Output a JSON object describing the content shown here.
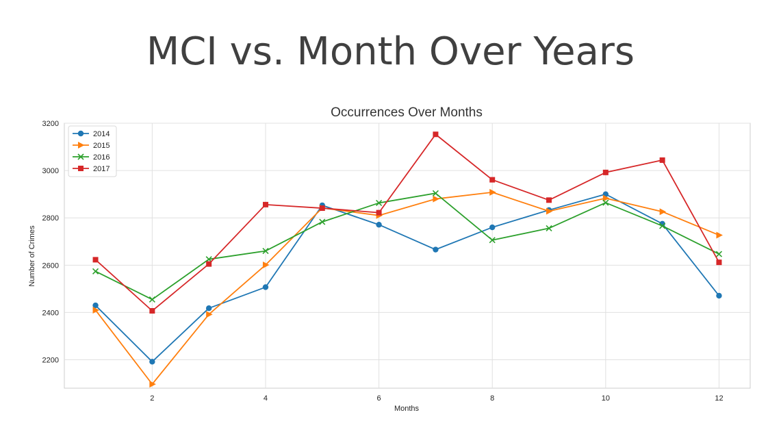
{
  "slide": {
    "title": "MCI  vs. Month Over Years"
  },
  "chart_data": {
    "type": "line",
    "title": "Occurrences Over Months",
    "xlabel": "Months",
    "ylabel": "Number of Crimes",
    "x": [
      1,
      2,
      3,
      4,
      5,
      6,
      7,
      8,
      9,
      10,
      11,
      12
    ],
    "xticks": [
      2,
      4,
      6,
      8,
      10,
      12
    ],
    "yticks": [
      2200,
      2400,
      2600,
      2800,
      3000,
      3200
    ],
    "ylim": [
      2080,
      3200
    ],
    "grid": true,
    "legend_position": "top-left",
    "series": [
      {
        "name": "2014",
        "color": "#1f77b4",
        "marker": "circle",
        "values": [
          2430,
          2192,
          2418,
          2507,
          2853,
          2771,
          2666,
          2760,
          2833,
          2900,
          2775,
          2471
        ]
      },
      {
        "name": "2015",
        "color": "#ff7f0e",
        "marker": "triangle-right",
        "values": [
          2410,
          2097,
          2392,
          2601,
          2842,
          2810,
          2880,
          2908,
          2828,
          2883,
          2826,
          2727
        ]
      },
      {
        "name": "2016",
        "color": "#2ca02c",
        "marker": "x",
        "values": [
          2574,
          2455,
          2625,
          2660,
          2783,
          2863,
          2904,
          2706,
          2756,
          2864,
          2766,
          2647
        ]
      },
      {
        "name": "2017",
        "color": "#d62728",
        "marker": "square",
        "values": [
          2623,
          2407,
          2605,
          2856,
          2841,
          2822,
          3153,
          2961,
          2875,
          2992,
          3044,
          2612
        ]
      }
    ]
  }
}
